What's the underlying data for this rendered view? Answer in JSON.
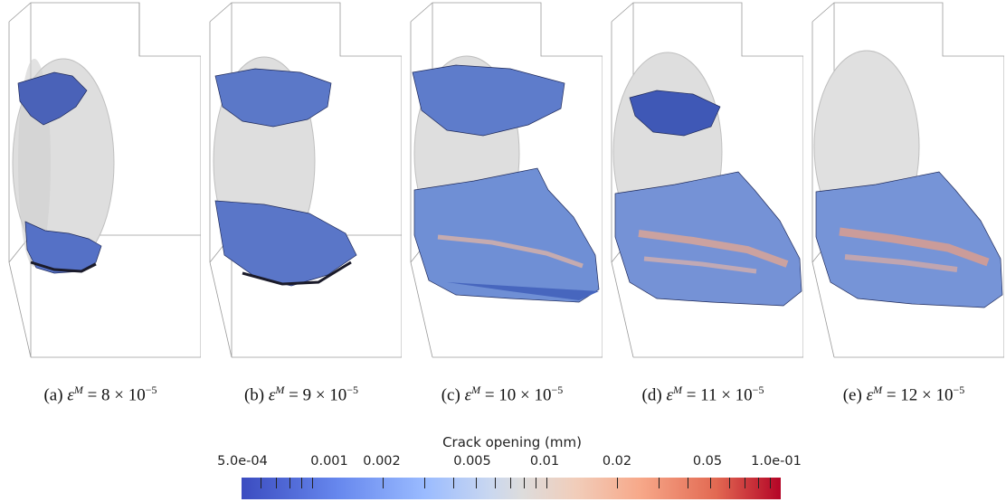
{
  "figure": {
    "panels": [
      {
        "label": "(a)",
        "eps_value": "8",
        "mult": "×",
        "base": "10",
        "exp": "−5"
      },
      {
        "label": "(b)",
        "eps_value": "9",
        "mult": "×",
        "base": "10",
        "exp": "−5"
      },
      {
        "label": "(c)",
        "eps_value": "10",
        "mult": "×",
        "base": "10",
        "exp": "−5"
      },
      {
        "label": "(d)",
        "eps_value": "11",
        "mult": "×",
        "base": "10",
        "exp": "−5"
      },
      {
        "label": "(e)",
        "eps_value": "12",
        "mult": "×",
        "base": "10",
        "exp": "−5"
      }
    ],
    "symbol": "ε",
    "superscript": "M",
    "equals": "="
  },
  "colorbar": {
    "title": "Crack opening (mm)",
    "tick_labels": [
      "5.0e-04",
      "0.001",
      "0.002",
      "0.005",
      "0.01",
      "0.02",
      "0.05",
      "1.0e-01"
    ],
    "scale": "log",
    "range": [
      0.0005,
      0.1
    ],
    "colormap": "cool-to-warm",
    "colors": {
      "low": "#3b4cc0",
      "mid": "#dddcdc",
      "high": "#b40426"
    }
  }
}
